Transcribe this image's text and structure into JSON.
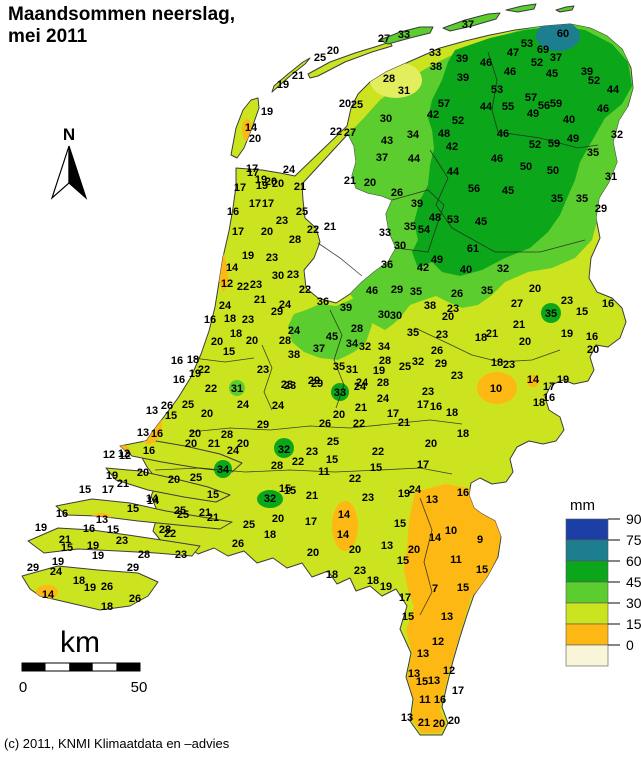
{
  "title": {
    "line1": "Maandsommen neerslag,",
    "line2": "mei 2011"
  },
  "copyright": "(c) 2011, KNMI Klimaatdata en –advies",
  "compass": {
    "label": "N"
  },
  "scale_bar": {
    "label": "km",
    "start": "0",
    "end": "50"
  },
  "legend": {
    "title": "mm"
  },
  "chart_data": {
    "type": "heatmap",
    "subtype": "choropleth-precipitation-map",
    "title": "Maandsommen neerslag, mei 2011",
    "region": "Netherlands",
    "unit": "mm",
    "legend_position": "right-bottom",
    "legend_bins": [
      {
        "tick": "90",
        "range_mm": "75-90",
        "color": "#1c3fa5"
      },
      {
        "tick": "75",
        "range_mm": "60-75",
        "color": "#1d7e8f"
      },
      {
        "tick": "60",
        "range_mm": "45-60",
        "color": "#0ca61a"
      },
      {
        "tick": "45",
        "range_mm": "30-45",
        "color": "#5ccd2e"
      },
      {
        "tick": "30",
        "range_mm": "15-30",
        "color": "#cce41f"
      },
      {
        "tick": "15",
        "range_mm": "0-15",
        "color": "#fdb813"
      },
      {
        "tick": "0",
        "range_mm": "<0",
        "color": "#f8f5d8"
      }
    ],
    "colors": {
      "water": "#ffffff",
      "outline": "#3c3c3c",
      "pale_patch": "#e3ee5f"
    },
    "stations_format": "[value_mm, x_px, y_px]",
    "stations": [
      [
        19,
        283,
        84
      ],
      [
        21,
        298,
        75
      ],
      [
        25,
        320,
        57
      ],
      [
        20,
        333,
        50
      ],
      [
        27,
        384,
        38
      ],
      [
        33,
        404,
        34
      ],
      [
        37,
        468,
        24
      ],
      [
        33,
        435,
        52
      ],
      [
        38,
        436,
        66
      ],
      [
        39,
        462,
        58
      ],
      [
        46,
        486,
        62
      ],
      [
        39,
        463,
        77
      ],
      [
        46,
        510,
        71
      ],
      [
        47,
        513,
        52
      ],
      [
        53,
        527,
        43
      ],
      [
        69,
        543,
        49
      ],
      [
        60,
        563,
        33
      ],
      [
        37,
        556,
        57
      ],
      [
        52,
        537,
        62
      ],
      [
        45,
        552,
        73
      ],
      [
        39,
        587,
        71
      ],
      [
        52,
        594,
        80
      ],
      [
        44,
        613,
        89
      ],
      [
        53,
        497,
        89
      ],
      [
        28,
        389,
        78
      ],
      [
        31,
        404,
        90
      ],
      [
        20,
        345,
        103
      ],
      [
        25,
        357,
        104
      ],
      [
        30,
        386,
        118
      ],
      [
        43,
        387,
        140
      ],
      [
        34,
        413,
        134
      ],
      [
        37,
        382,
        157
      ],
      [
        44,
        414,
        158
      ],
      [
        57,
        444,
        103
      ],
      [
        42,
        433,
        114
      ],
      [
        52,
        458,
        120
      ],
      [
        48,
        444,
        133
      ],
      [
        42,
        452,
        146
      ],
      [
        44,
        453,
        171
      ],
      [
        22,
        336,
        131
      ],
      [
        27,
        350,
        132
      ],
      [
        21,
        350,
        180
      ],
      [
        20,
        370,
        182
      ],
      [
        26,
        397,
        192
      ],
      [
        39,
        417,
        203
      ],
      [
        44,
        486,
        106
      ],
      [
        55,
        508,
        106
      ],
      [
        57,
        531,
        97
      ],
      [
        49,
        533,
        113
      ],
      [
        56,
        544,
        105
      ],
      [
        59,
        556,
        103
      ],
      [
        40,
        569,
        119
      ],
      [
        49,
        573,
        138
      ],
      [
        46,
        603,
        108
      ],
      [
        32,
        617,
        134
      ],
      [
        35,
        593,
        152
      ],
      [
        31,
        611,
        176
      ],
      [
        46,
        503,
        133
      ],
      [
        46,
        497,
        158
      ],
      [
        52,
        535,
        144
      ],
      [
        59,
        554,
        143
      ],
      [
        50,
        526,
        166
      ],
      [
        50,
        553,
        170
      ],
      [
        56,
        474,
        188
      ],
      [
        45,
        508,
        190
      ],
      [
        35,
        557,
        198
      ],
      [
        35,
        582,
        198
      ],
      [
        29,
        601,
        208
      ],
      [
        48,
        435,
        217
      ],
      [
        53,
        453,
        219
      ],
      [
        45,
        481,
        221
      ],
      [
        61,
        473,
        248
      ],
      [
        33,
        385,
        232
      ],
      [
        35,
        410,
        226
      ],
      [
        54,
        424,
        229
      ],
      [
        30,
        400,
        245
      ],
      [
        36,
        387,
        264
      ],
      [
        42,
        423,
        267
      ],
      [
        49,
        437,
        259
      ],
      [
        40,
        466,
        269
      ],
      [
        32,
        503,
        268
      ],
      [
        46,
        372,
        290
      ],
      [
        29,
        397,
        289
      ],
      [
        35,
        416,
        291
      ],
      [
        26,
        457,
        293
      ],
      [
        35,
        487,
        290
      ],
      [
        30,
        384,
        314
      ],
      [
        30,
        396,
        315
      ],
      [
        38,
        430,
        305
      ],
      [
        23,
        453,
        308
      ],
      [
        20,
        448,
        316
      ],
      [
        35,
        413,
        332
      ],
      [
        23,
        442,
        334
      ],
      [
        26,
        437,
        350
      ],
      [
        20,
        535,
        288
      ],
      [
        27,
        517,
        303
      ],
      [
        23,
        567,
        300
      ],
      [
        35,
        551,
        313
      ],
      [
        15,
        582,
        311
      ],
      [
        16,
        608,
        303
      ],
      [
        21,
        519,
        324
      ],
      [
        19,
        567,
        333
      ],
      [
        16,
        592,
        336
      ],
      [
        20,
        525,
        341
      ],
      [
        20,
        593,
        349
      ],
      [
        18,
        481,
        337
      ],
      [
        21,
        492,
        333
      ],
      [
        18,
        497,
        362
      ],
      [
        23,
        509,
        364
      ],
      [
        10,
        496,
        388
      ],
      [
        14,
        533,
        379
      ],
      [
        17,
        549,
        386
      ],
      [
        19,
        563,
        379
      ],
      [
        16,
        549,
        397
      ],
      [
        18,
        539,
        402
      ],
      [
        17,
        253,
        172
      ],
      [
        24,
        289,
        169
      ],
      [
        17,
        240,
        187
      ],
      [
        19,
        262,
        185
      ],
      [
        20,
        278,
        183
      ],
      [
        21,
        300,
        186
      ],
      [
        17,
        255,
        203
      ],
      [
        17,
        268,
        203
      ],
      [
        16,
        233,
        211
      ],
      [
        25,
        302,
        211
      ],
      [
        23,
        282,
        220
      ],
      [
        17,
        238,
        231
      ],
      [
        20,
        267,
        231
      ],
      [
        22,
        313,
        229
      ],
      [
        21,
        330,
        226
      ],
      [
        28,
        295,
        239
      ],
      [
        19,
        248,
        255
      ],
      [
        23,
        272,
        257
      ],
      [
        14,
        232,
        267
      ],
      [
        30,
        278,
        275
      ],
      [
        23,
        293,
        274
      ],
      [
        12,
        227,
        283
      ],
      [
        22,
        243,
        286
      ],
      [
        23,
        256,
        284
      ],
      [
        21,
        260,
        299
      ],
      [
        24,
        225,
        305
      ],
      [
        29,
        277,
        311
      ],
      [
        24,
        285,
        304
      ],
      [
        22,
        305,
        289
      ],
      [
        19,
        267,
        111
      ],
      [
        14,
        251,
        127
      ],
      [
        20,
        255,
        138
      ],
      [
        17,
        252,
        168
      ],
      [
        19,
        261,
        179
      ],
      [
        20,
        271,
        181
      ],
      [
        36,
        323,
        301
      ],
      [
        39,
        346,
        307
      ],
      [
        16,
        210,
        319
      ],
      [
        18,
        230,
        318
      ],
      [
        23,
        248,
        319
      ],
      [
        18,
        236,
        333
      ],
      [
        20,
        217,
        341
      ],
      [
        20,
        252,
        340
      ],
      [
        15,
        229,
        351
      ],
      [
        24,
        294,
        330
      ],
      [
        28,
        285,
        340
      ],
      [
        38,
        294,
        354
      ],
      [
        37,
        319,
        348
      ],
      [
        45,
        332,
        336
      ],
      [
        35,
        339,
        366
      ],
      [
        28,
        357,
        328
      ],
      [
        34,
        352,
        343
      ],
      [
        32,
        365,
        346
      ],
      [
        34,
        384,
        346
      ],
      [
        16,
        177,
        360
      ],
      [
        18,
        193,
        359
      ],
      [
        19,
        195,
        373
      ],
      [
        22,
        204,
        369
      ],
      [
        16,
        179,
        379
      ],
      [
        22,
        211,
        388
      ],
      [
        31,
        237,
        388
      ],
      [
        23,
        263,
        369
      ],
      [
        23,
        287,
        384
      ],
      [
        29,
        314,
        380
      ],
      [
        33,
        340,
        392
      ],
      [
        31,
        352,
        369
      ],
      [
        19,
        379,
        370
      ],
      [
        28,
        385,
        360
      ],
      [
        25,
        405,
        366
      ],
      [
        32,
        418,
        361
      ],
      [
        29,
        441,
        363
      ],
      [
        23,
        457,
        375
      ],
      [
        24,
        362,
        382
      ],
      [
        28,
        383,
        382
      ],
      [
        23,
        290,
        385
      ],
      [
        29,
        317,
        383
      ],
      [
        24,
        360,
        386
      ],
      [
        24,
        383,
        398
      ],
      [
        21,
        361,
        407
      ],
      [
        17,
        393,
        413
      ],
      [
        23,
        428,
        391
      ],
      [
        17,
        423,
        404
      ],
      [
        16,
        436,
        406
      ],
      [
        18,
        452,
        412
      ],
      [
        20,
        339,
        414
      ],
      [
        26,
        325,
        423
      ],
      [
        22,
        359,
        423
      ],
      [
        21,
        404,
        422
      ],
      [
        25,
        333,
        441
      ],
      [
        18,
        463,
        433
      ],
      [
        23,
        312,
        451
      ],
      [
        22,
        298,
        461
      ],
      [
        15,
        332,
        459
      ],
      [
        11,
        324,
        471
      ],
      [
        22,
        355,
        478
      ],
      [
        15,
        376,
        467
      ],
      [
        22,
        378,
        451
      ],
      [
        20,
        431,
        443
      ],
      [
        17,
        423,
        464
      ],
      [
        15,
        290,
        490
      ],
      [
        21,
        312,
        495
      ],
      [
        23,
        368,
        497
      ],
      [
        19,
        404,
        493
      ],
      [
        24,
        415,
        489
      ],
      [
        13,
        432,
        499
      ],
      [
        16,
        463,
        492
      ],
      [
        13,
        152,
        410
      ],
      [
        26,
        167,
        405
      ],
      [
        15,
        171,
        415
      ],
      [
        25,
        188,
        404
      ],
      [
        20,
        207,
        413
      ],
      [
        24,
        243,
        404
      ],
      [
        24,
        278,
        405
      ],
      [
        29,
        263,
        424
      ],
      [
        13,
        143,
        432
      ],
      [
        16,
        157,
        433
      ],
      [
        16,
        149,
        450
      ],
      [
        12,
        124,
        453
      ],
      [
        20,
        195,
        433
      ],
      [
        20,
        191,
        443
      ],
      [
        28,
        227,
        434
      ],
      [
        21,
        214,
        443
      ],
      [
        20,
        243,
        443
      ],
      [
        24,
        233,
        450
      ],
      [
        20,
        143,
        472
      ],
      [
        21,
        123,
        483
      ],
      [
        20,
        174,
        479
      ],
      [
        25,
        196,
        477
      ],
      [
        34,
        223,
        469
      ],
      [
        32,
        284,
        449
      ],
      [
        28,
        277,
        465
      ],
      [
        32,
        270,
        498
      ],
      [
        15,
        285,
        488
      ],
      [
        15,
        213,
        494
      ],
      [
        14,
        152,
        498
      ],
      [
        15,
        133,
        508
      ],
      [
        25,
        180,
        510
      ],
      [
        21,
        205,
        512
      ],
      [
        12,
        109,
        454
      ],
      [
        12,
        125,
        455
      ],
      [
        19,
        112,
        475
      ],
      [
        15,
        85,
        489
      ],
      [
        17,
        108,
        489
      ],
      [
        14,
        153,
        500
      ],
      [
        16,
        62,
        513
      ],
      [
        19,
        41,
        527
      ],
      [
        13,
        102,
        519
      ],
      [
        16,
        89,
        528
      ],
      [
        15,
        113,
        529
      ],
      [
        21,
        65,
        539
      ],
      [
        15,
        67,
        547
      ],
      [
        19,
        93,
        545
      ],
      [
        23,
        122,
        540
      ],
      [
        19,
        98,
        555
      ],
      [
        29,
        33,
        567
      ],
      [
        19,
        58,
        561
      ],
      [
        24,
        56,
        571
      ],
      [
        28,
        144,
        554
      ],
      [
        29,
        133,
        567
      ],
      [
        18,
        79,
        580
      ],
      [
        19,
        90,
        587
      ],
      [
        26,
        107,
        586
      ],
      [
        14,
        48,
        594
      ],
      [
        18,
        107,
        606
      ],
      [
        26,
        135,
        598
      ],
      [
        25,
        183,
        514
      ],
      [
        21,
        213,
        517
      ],
      [
        25,
        249,
        524
      ],
      [
        20,
        278,
        518
      ],
      [
        17,
        311,
        521
      ],
      [
        14,
        344,
        514
      ],
      [
        14,
        343,
        534
      ],
      [
        18,
        270,
        534
      ],
      [
        26,
        238,
        543
      ],
      [
        23,
        181,
        554
      ],
      [
        22,
        170,
        533
      ],
      [
        28,
        165,
        529
      ],
      [
        20,
        313,
        552
      ],
      [
        20,
        355,
        549
      ],
      [
        18,
        332,
        574
      ],
      [
        23,
        360,
        570
      ],
      [
        18,
        373,
        580
      ],
      [
        15,
        400,
        523
      ],
      [
        10,
        451,
        530
      ],
      [
        14,
        435,
        537
      ],
      [
        9,
        480,
        539
      ],
      [
        13,
        387,
        545
      ],
      [
        20,
        414,
        549
      ],
      [
        15,
        403,
        560
      ],
      [
        11,
        456,
        559
      ],
      [
        15,
        482,
        569
      ],
      [
        19,
        386,
        586
      ],
      [
        7,
        435,
        588
      ],
      [
        15,
        463,
        587
      ],
      [
        17,
        405,
        597
      ],
      [
        15,
        408,
        616
      ],
      [
        13,
        447,
        616
      ],
      [
        12,
        438,
        641
      ],
      [
        13,
        423,
        653
      ],
      [
        12,
        449,
        670
      ],
      [
        13,
        414,
        673
      ],
      [
        15,
        422,
        681
      ],
      [
        13,
        434,
        680
      ],
      [
        17,
        458,
        690
      ],
      [
        11,
        425,
        699
      ],
      [
        16,
        440,
        699
      ],
      [
        13,
        407,
        717
      ],
      [
        21,
        424,
        722
      ],
      [
        20,
        439,
        723
      ],
      [
        20,
        454,
        720
      ]
    ]
  }
}
